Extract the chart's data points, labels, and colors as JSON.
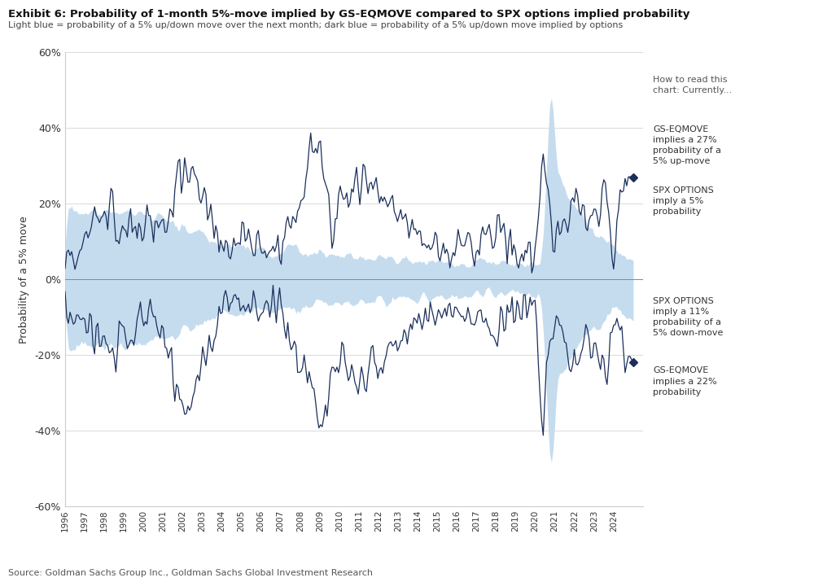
{
  "title": "Exhibit 6: Probability of 1-month 5%-move implied by GS-EQMOVE compared to SPX options implied probability",
  "subtitle": "Light blue = probability of a 5% up/down move over the next month; dark blue = probability of a 5% up/down move implied by options",
  "ylabel": "Probability of a 5% move",
  "source": "Source: Goldman Sachs Group Inc., Goldman Sachs Global Investment Research",
  "ylim": [
    -60,
    60
  ],
  "yticks": [
    -60,
    -40,
    -20,
    0,
    20,
    40,
    60
  ],
  "ytick_labels": [
    "-60%",
    "-40%",
    "-20%",
    "0%",
    "20%",
    "40%",
    "60%"
  ],
  "light_blue_color": "#C5DCEF",
  "dark_blue_color": "#1B2F5B",
  "annotation_upper_1": "GS-EQMOVE\nimplies a 27%\nprobability of a\n5% up-move",
  "annotation_upper_2": "SPX OPTIONS\nimply a 5%\nprobability",
  "annotation_lower_1": "SPX OPTIONS\nimply a 11%\nprobability of a\n5% down-move",
  "annotation_lower_2": "GS-EQMOVE\nimplies a 22%\nprobability",
  "annotation_how": "How to read this\nchart: Currently...",
  "background_color": "#FFFFFF",
  "annotation_color": "#333333",
  "annotation_how_color": "#555555"
}
